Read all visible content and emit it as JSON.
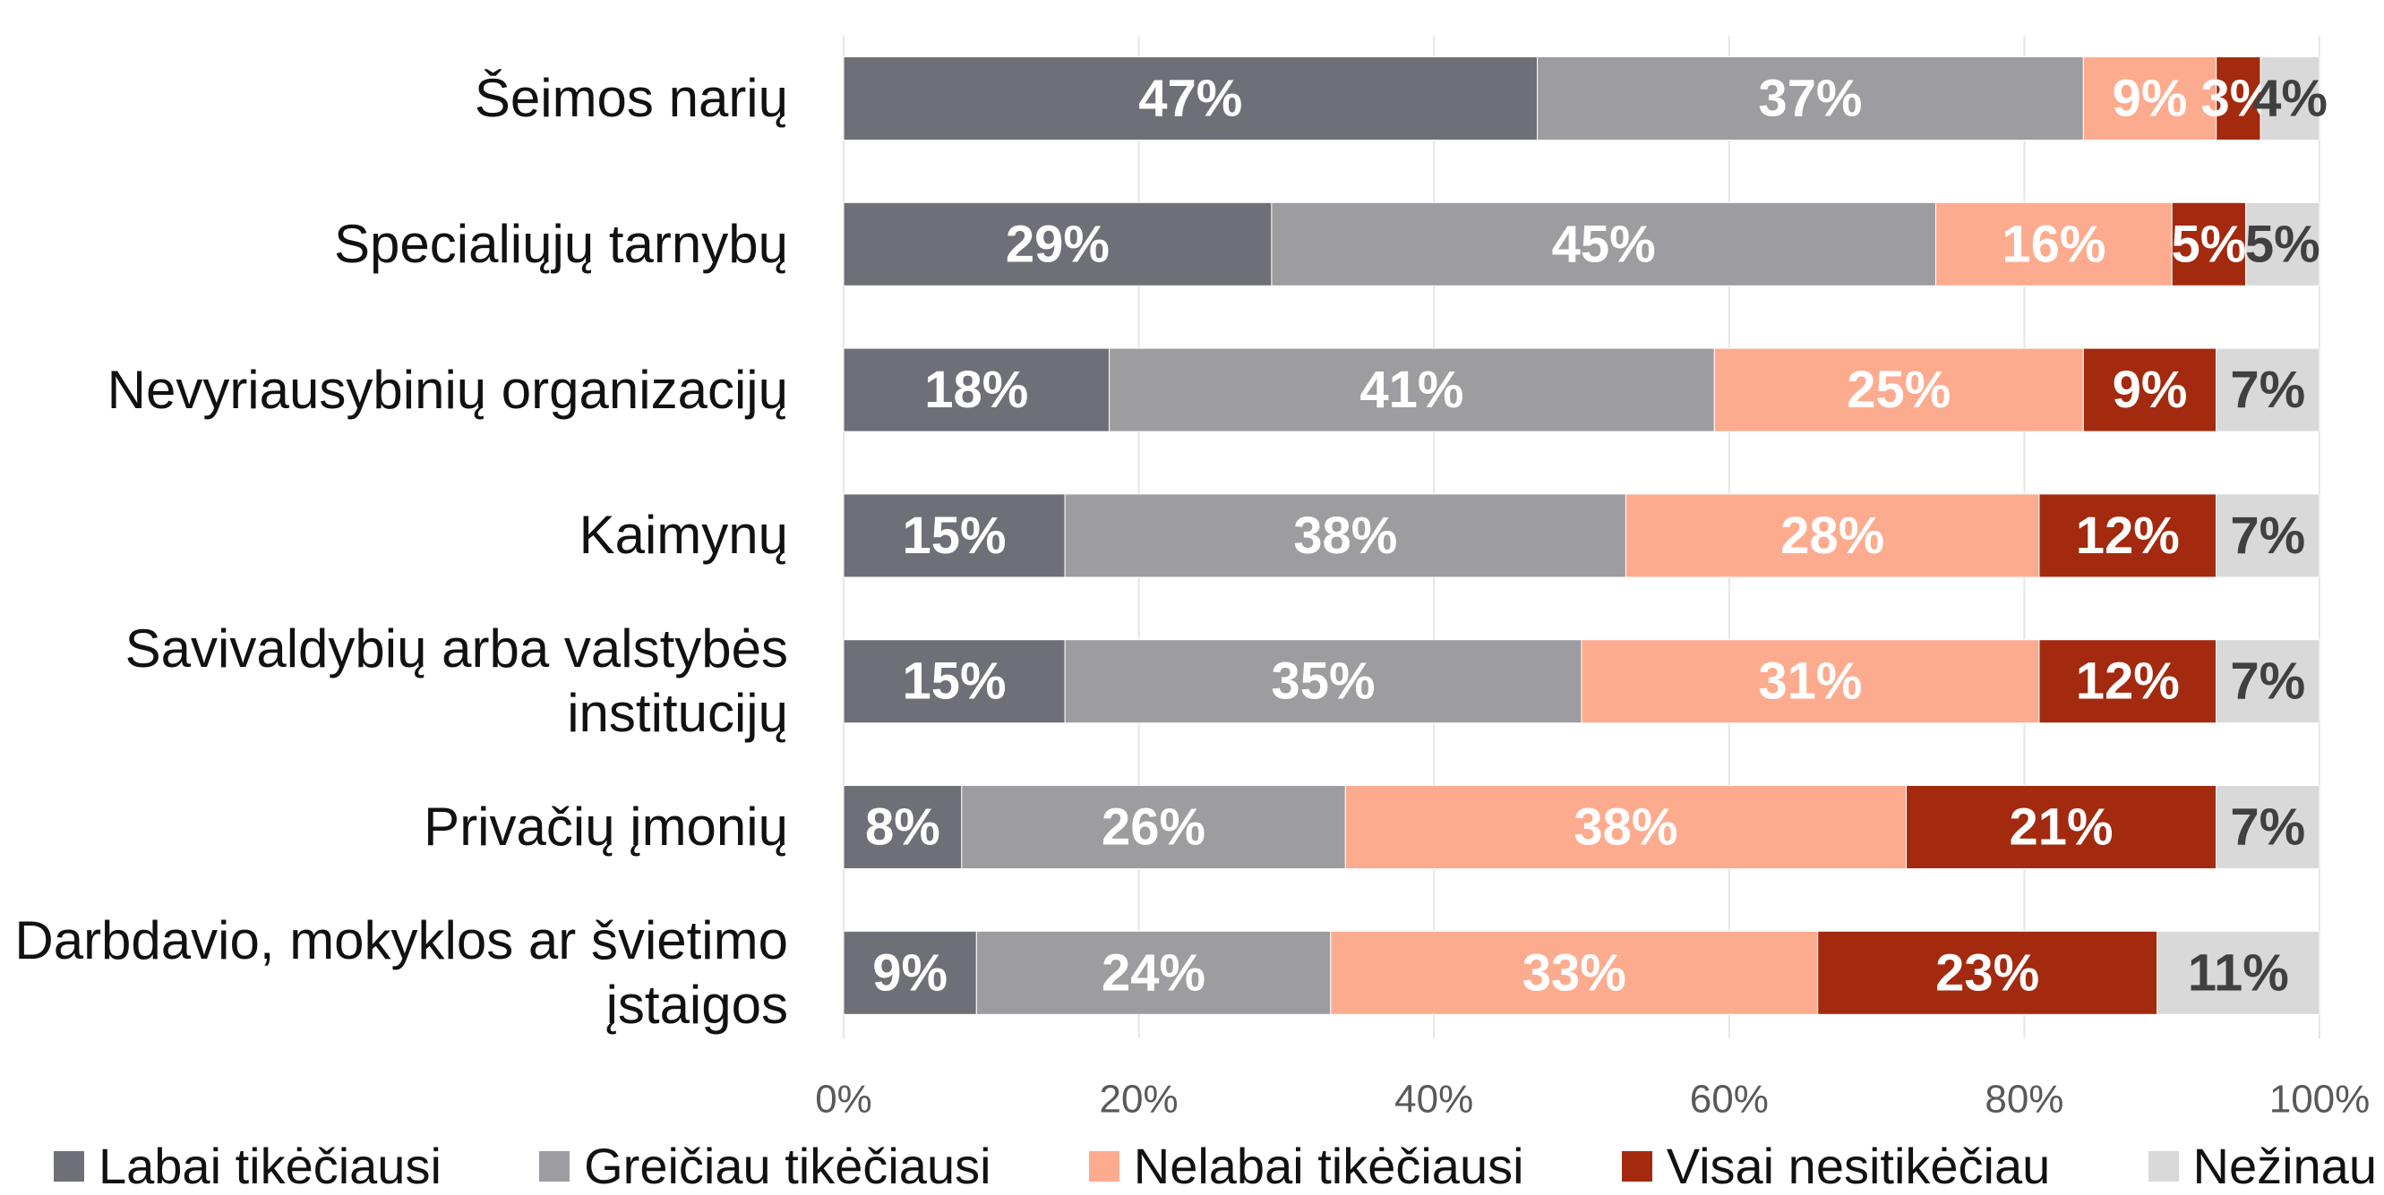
{
  "chart_data": {
    "type": "stacked_barh",
    "categories": [
      "Šeimos narių",
      "Specialiųjų tarnybų",
      "Nevyriausybinių organizacijų",
      "Kaimynų",
      "Savivaldybių arba valstybės institucijų",
      "Privačių įmonių",
      "Darbdavio, mokyklos ar švietimo įstaigos"
    ],
    "series": [
      {
        "name": "Labai tikėčiausi",
        "color": "#6f6f77",
        "values": [
          47,
          29,
          18,
          15,
          15,
          8,
          9
        ],
        "value_labels": [
          "47%",
          "29%",
          "18%",
          "15%",
          "15%",
          "8%",
          "9%"
        ]
      },
      {
        "name": "Greičiau tikėčiausi",
        "color": "#9d9da1",
        "values": [
          37,
          45,
          41,
          38,
          35,
          26,
          24
        ],
        "value_labels": [
          "37%",
          "45%",
          "41%",
          "38%",
          "35%",
          "26%",
          "24%"
        ]
      },
      {
        "name": "Nelabai tikėčiausi",
        "color": "#fdab8e",
        "values": [
          9,
          16,
          25,
          28,
          31,
          38,
          33
        ],
        "value_labels": [
          "9%",
          "16%",
          "25%",
          "28%",
          "31%",
          "38%",
          "33%"
        ]
      },
      {
        "name": "Visai nesitikėčiau",
        "color": "#a32a0e",
        "values": [
          3,
          5,
          9,
          12,
          12,
          21,
          23
        ],
        "value_labels": [
          "3%",
          "5%",
          "9%",
          "12%",
          "12%",
          "21%",
          "23%"
        ]
      },
      {
        "name": "Nežinau",
        "color": "#d9d9d9",
        "values": [
          4,
          5,
          7,
          7,
          7,
          7,
          11
        ],
        "value_labels": [
          "4%",
          "5%",
          "7%",
          "7%",
          "7%",
          "7%",
          "11%"
        ]
      }
    ],
    "xlim": [
      0,
      100
    ],
    "xticks": [
      {
        "value": 0,
        "label": "0%"
      },
      {
        "value": 20,
        "label": "20%"
      },
      {
        "value": 40,
        "label": "40%"
      },
      {
        "value": 60,
        "label": "60%"
      },
      {
        "value": 80,
        "label": "80%"
      },
      {
        "value": 100,
        "label": "100%"
      }
    ],
    "grid": true,
    "legend": "bottom"
  }
}
